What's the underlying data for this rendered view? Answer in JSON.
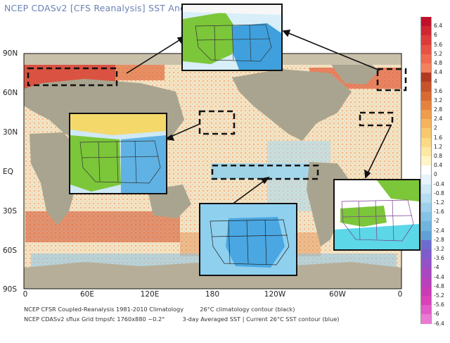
{
  "title": "NCEP CDASv2 [CFS Reanalysis] SST Anoma",
  "lat_labels": [
    "90N",
    "60N",
    "30N",
    "EQ",
    "30S",
    "60S",
    "90S"
  ],
  "lon_labels": [
    "0",
    "60E",
    "120E",
    "180",
    "120W",
    "60W",
    "0"
  ],
  "footer": {
    "line1_left": "NCEP CFSR Coupled-Reanalysis 1981-2010 Climatology",
    "line1_right": "26°C climatology contour (black)",
    "line2_left": "NCEP CDASv2 sflux Grid tmpsfc 1760x880 ~0.2°",
    "line2_right": "3-day Averaged SST | Current 26°C SST contour (blue)"
  },
  "colorbar": {
    "labels": [
      "6.4",
      "6",
      "5.6",
      "5.2",
      "4.8",
      "4.4",
      "4",
      "3.6",
      "3.2",
      "2.8",
      "2.4",
      "2",
      "1.6",
      "1.2",
      "0.8",
      "0.4",
      "0",
      "-0.4",
      "-0.8",
      "-1.2",
      "-1.6",
      "-2",
      "-2.4",
      "-2.8",
      "-3.2",
      "-3.6",
      "-4",
      "-4.4",
      "-4.8",
      "-5.2",
      "-5.6",
      "-6",
      "-6.4"
    ],
    "colors": [
      "#c0102a",
      "#d02632",
      "#dd3b3b",
      "#e65244",
      "#ef6b50",
      "#f3825d",
      "#b33a22",
      "#c6532a",
      "#d86a33",
      "#e5833e",
      "#ef9c4b",
      "#f5b45c",
      "#f8c86f",
      "#fbda86",
      "#fde9a3",
      "#fef5c6",
      "#ffffff",
      "#e8f4fb",
      "#cfe8f6",
      "#b7ddf1",
      "#9dd0ec",
      "#84c2e6",
      "#6fb3df",
      "#5ea1d6",
      "#6b6bd0",
      "#7e5ccb",
      "#9352c6",
      "#a748c0",
      "#b840bb",
      "#c93bb5",
      "#d841b8",
      "#e25bc6",
      "#ec7ad4"
    ]
  },
  "insets": [
    {
      "name": "inset-top-center",
      "theme": "green-north"
    },
    {
      "name": "inset-left",
      "theme": "green-west"
    },
    {
      "name": "inset-bottom-center",
      "theme": "blue-cold"
    },
    {
      "name": "inset-right",
      "theme": "green-light"
    }
  ]
}
